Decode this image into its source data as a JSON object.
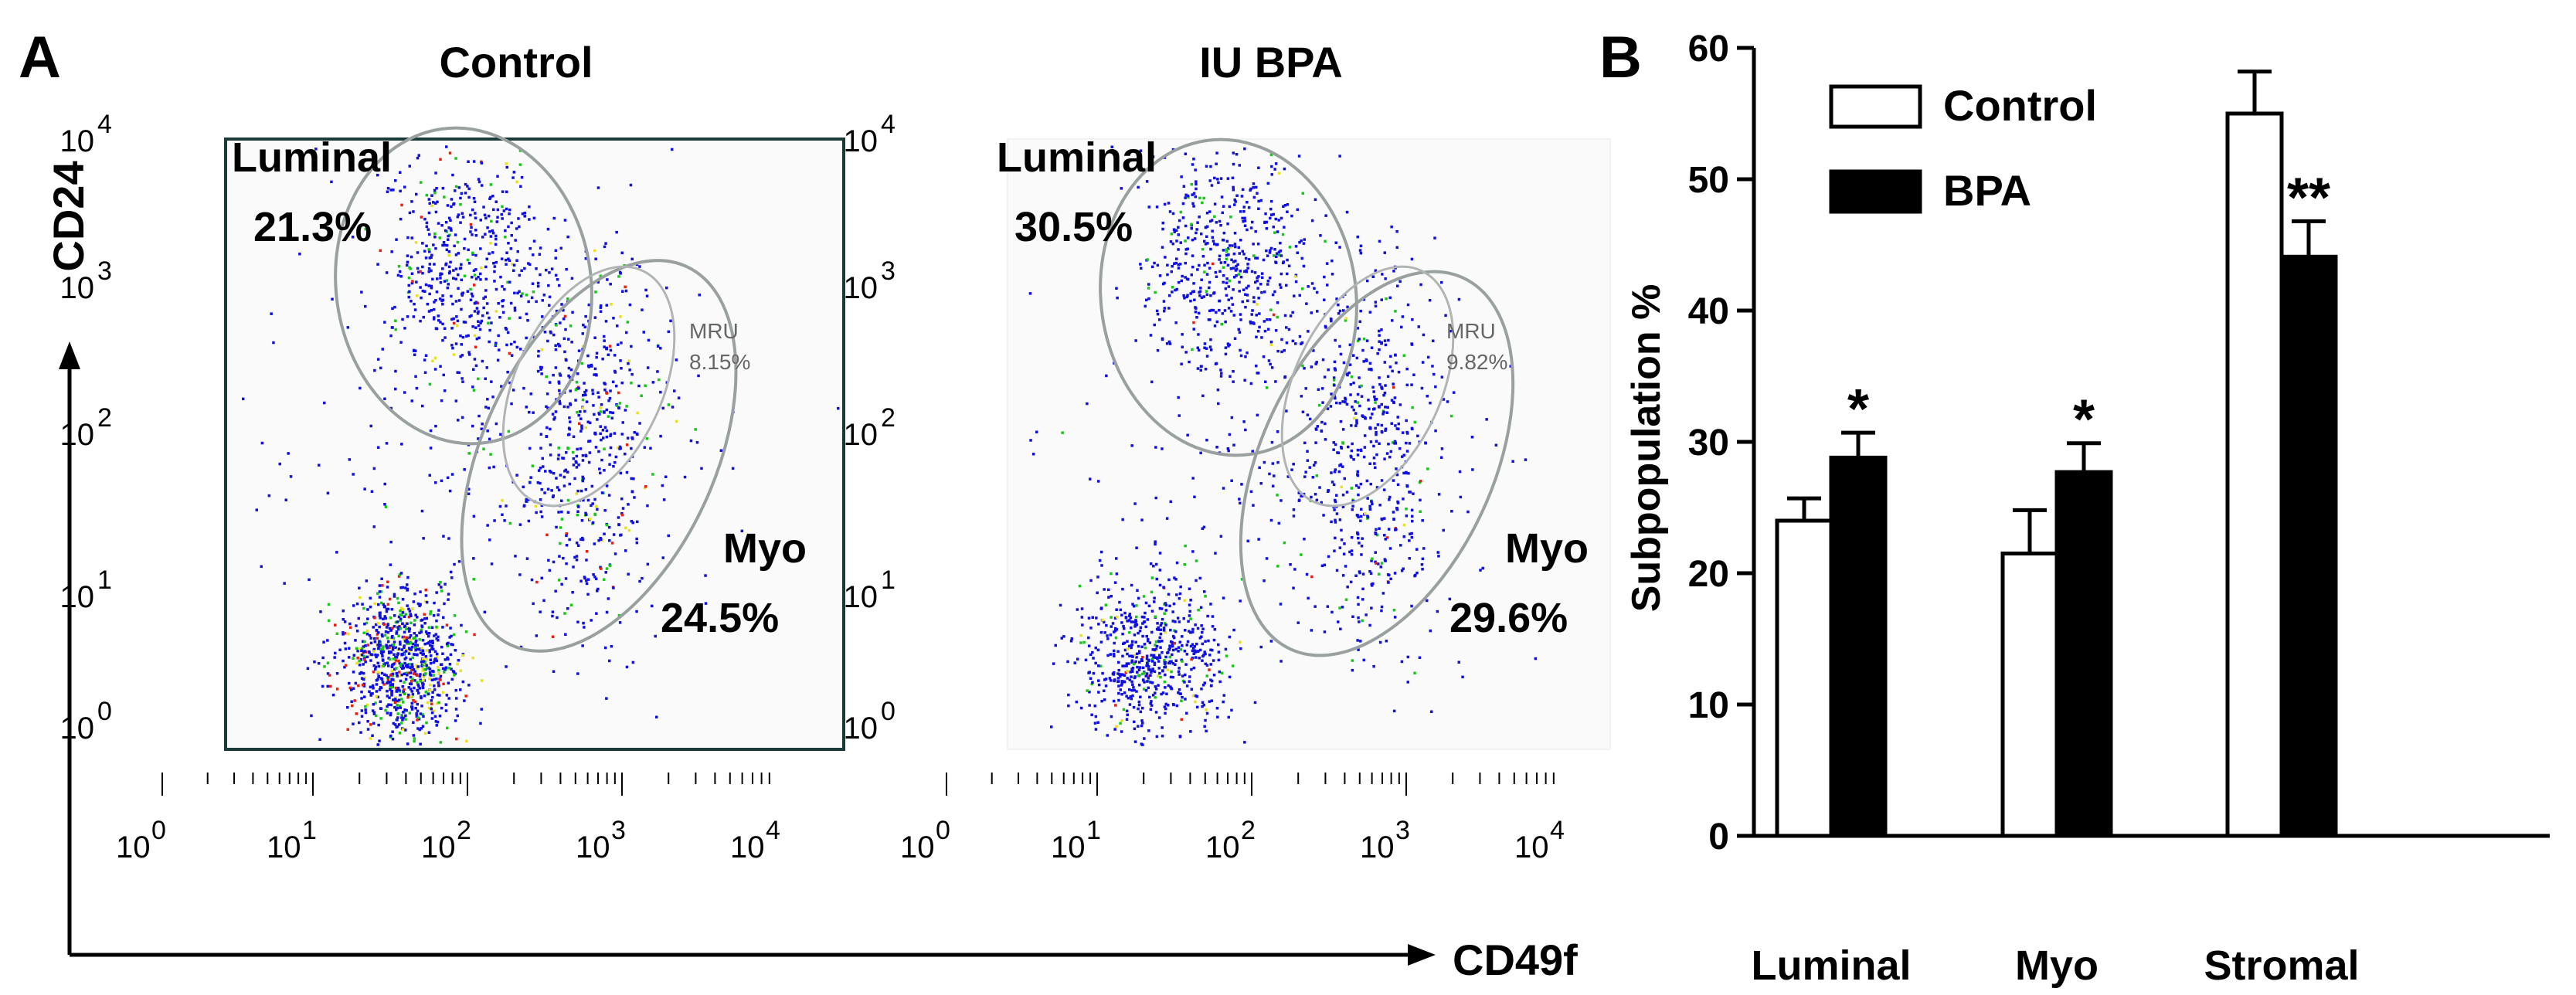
{
  "panel_a": {
    "letter": "A",
    "y_axis_label": "CD24",
    "x_axis_label": "CD49f",
    "tick_base": "10",
    "tick_exponents": [
      "0",
      "1",
      "2",
      "3",
      "4"
    ],
    "plots": [
      {
        "title": "Control",
        "luminal_label": "Luminal",
        "luminal_pct": "21.3%",
        "myo_label": "Myo",
        "myo_pct": "24.5%",
        "mru_label": "MRU",
        "mru_pct": "8.15%"
      },
      {
        "title": "IU BPA",
        "luminal_label": "Luminal",
        "luminal_pct": "30.5%",
        "myo_label": "Myo",
        "myo_pct": "29.6%",
        "mru_label": "MRU",
        "mru_pct": "9.82%"
      }
    ],
    "dot_colors": {
      "primary": "#1010e0",
      "secondary": "#18c818",
      "tertiary": "#e8e020",
      "hot": "#e82010"
    }
  },
  "chart_data": {
    "type": "bar",
    "panel_letter": "B",
    "categories": [
      "Luminal",
      "Myo",
      "Stromal"
    ],
    "series": [
      {
        "name": "Control",
        "values": [
          24,
          21.5,
          55
        ],
        "errors": [
          1.7,
          3.3,
          3.2
        ],
        "fill": "#ffffff"
      },
      {
        "name": "BPA",
        "values": [
          28.8,
          27.7,
          44.1
        ],
        "errors": [
          1.9,
          2.2,
          2.7
        ],
        "fill": "#000000"
      }
    ],
    "significance": [
      "*",
      "*",
      "**"
    ],
    "ylabel": "Subpopulation %",
    "ylim": [
      0,
      60
    ],
    "yticks": [
      0,
      10,
      20,
      30,
      40,
      50,
      60
    ],
    "legend_position": "top-left",
    "grid": false
  }
}
